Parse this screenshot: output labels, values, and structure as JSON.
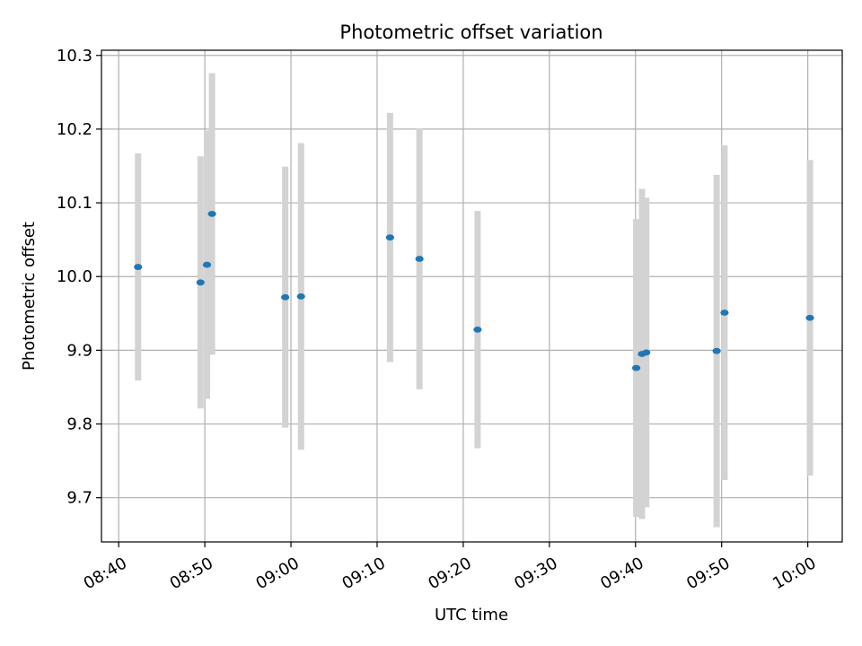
{
  "chart_data": {
    "type": "scatter",
    "title": "Photometric offset variation",
    "xlabel": "UTC time",
    "ylabel": "Photometric offset",
    "grid": true,
    "xlim": [
      "08:38",
      "10:04"
    ],
    "ylim": [
      9.64,
      10.307
    ],
    "xticks": [
      "08:40",
      "08:50",
      "09:00",
      "09:10",
      "09:20",
      "09:30",
      "09:40",
      "09:50",
      "10:00"
    ],
    "yticks": [
      "9.7",
      "9.8",
      "9.9",
      "10.0",
      "10.1",
      "10.2",
      "10.3"
    ],
    "colors": {
      "points": "#1f77b4",
      "errorbars": "#d3d3d3",
      "grid": "#b0b0b0"
    },
    "points": [
      {
        "x": "08:42:15",
        "y": 10.013,
        "err": 0.154
      },
      {
        "x": "08:49:30",
        "y": 9.992,
        "err": 0.171
      },
      {
        "x": "08:50:15",
        "y": 10.016,
        "err": 0.182
      },
      {
        "x": "08:50:50",
        "y": 10.085,
        "err": 0.191
      },
      {
        "x": "08:59:20",
        "y": 9.972,
        "err": 0.177
      },
      {
        "x": "09:01:10",
        "y": 9.973,
        "err": 0.208
      },
      {
        "x": "09:11:30",
        "y": 10.053,
        "err": 0.169
      },
      {
        "x": "09:14:55",
        "y": 10.024,
        "err": 0.177
      },
      {
        "x": "09:21:40",
        "y": 9.928,
        "err": 0.161
      },
      {
        "x": "09:40:05",
        "y": 9.876,
        "err": 0.202
      },
      {
        "x": "09:40:45",
        "y": 9.895,
        "err": 0.224
      },
      {
        "x": "09:41:15",
        "y": 9.897,
        "err": 0.21
      },
      {
        "x": "09:49:25",
        "y": 9.899,
        "err": 0.239
      },
      {
        "x": "09:50:20",
        "y": 9.951,
        "err": 0.227
      },
      {
        "x": "10:00:15",
        "y": 9.944,
        "err": 0.214
      }
    ]
  }
}
